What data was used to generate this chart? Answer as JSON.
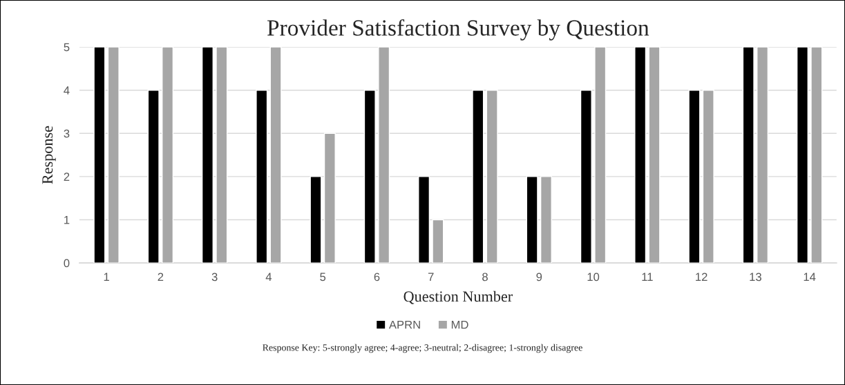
{
  "chart_data": {
    "type": "bar",
    "title": "Provider Satisfaction Survey by Question",
    "xlabel": "Question Number",
    "ylabel": "Response",
    "categories": [
      "1",
      "2",
      "3",
      "4",
      "5",
      "6",
      "7",
      "8",
      "9",
      "10",
      "11",
      "12",
      "13",
      "14"
    ],
    "series": [
      {
        "name": "APRN",
        "color": "#000000",
        "values": [
          5,
          4,
          5,
          4,
          2,
          4,
          2,
          4,
          2,
          4,
          5,
          4,
          5,
          5
        ]
      },
      {
        "name": "MD",
        "color": "#a6a6a6",
        "values": [
          5,
          5,
          5,
          5,
          3,
          5,
          1,
          4,
          2,
          5,
          5,
          4,
          5,
          5
        ]
      }
    ],
    "ylim": [
      0,
      5
    ],
    "yticks": [
      0,
      1,
      2,
      3,
      4,
      5
    ],
    "grid": "y",
    "legend": "bottom",
    "annotations": [
      "Response Key: 5-strongly agree; 4-agree; 3-neutral; 2-disagree; 1-strongly disagree"
    ]
  }
}
